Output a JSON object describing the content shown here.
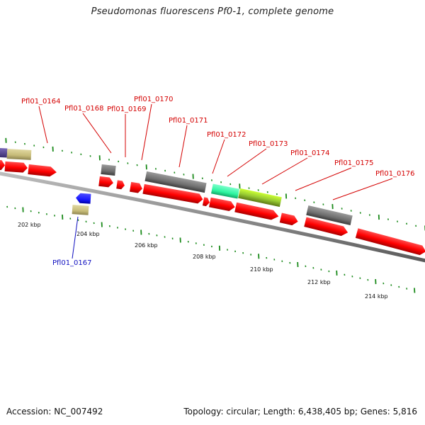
{
  "title": "Pseudomonas fluorescens Pf0-1, complete genome",
  "footer": {
    "accession": "Accession: NC_007492",
    "summary": "Topology: circular; Length: 6,438,405 bp; Genes: 5,816"
  },
  "scale_labels": [
    "202 kbp",
    "204 kbp",
    "206 kbp",
    "208 kbp",
    "210 kbp",
    "212 kbp",
    "214 kbp"
  ],
  "gene_labels": [
    {
      "text": "Pfl01_0164",
      "color": "#d40000"
    },
    {
      "text": "Pfl01_0168",
      "color": "#d40000"
    },
    {
      "text": "Pfl01_0169",
      "color": "#d40000"
    },
    {
      "text": "Pfl01_0170",
      "color": "#d40000"
    },
    {
      "text": "Pfl01_0171",
      "color": "#d40000"
    },
    {
      "text": "Pfl01_0172",
      "color": "#d40000"
    },
    {
      "text": "Pfl01_0173",
      "color": "#d40000"
    },
    {
      "text": "Pfl01_0174",
      "color": "#d40000"
    },
    {
      "text": "Pfl01_0175",
      "color": "#d40000"
    },
    {
      "text": "Pfl01_0176",
      "color": "#d40000"
    },
    {
      "text": "Pfl01_0167",
      "color": "#1010c0"
    }
  ],
  "colors": {
    "cds": "#ff0000",
    "backbone": "#8c8c8c",
    "tick": "#1a8a1a",
    "gray_feature": "#707070",
    "khaki_feature": "#c8bd7a",
    "blue_feature": "#1a1aff",
    "purple_feature": "#5a4a9a",
    "teal_feature": "#33ffaa",
    "olive_feature": "#99cc33"
  }
}
